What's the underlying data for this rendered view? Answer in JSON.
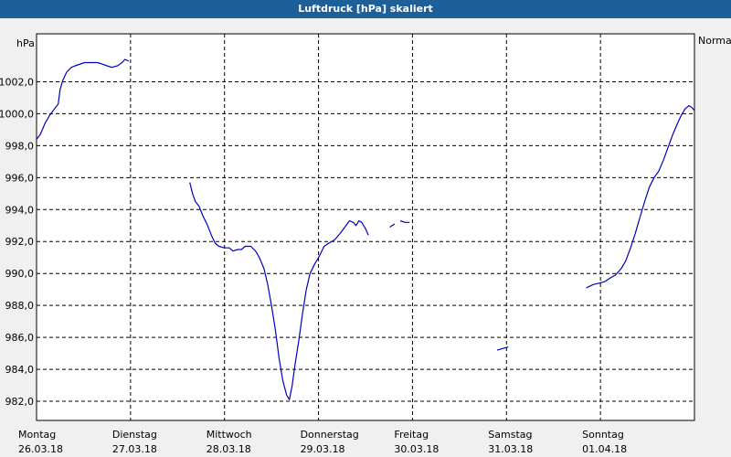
{
  "window": {
    "title": "Luftdruck [hPa] skaliert"
  },
  "chart_data": {
    "type": "line",
    "title": "Luftdruck [hPa] skaliert",
    "yunit": "hPa",
    "legend": "Normal",
    "ylim": [
      980.8,
      1005.0
    ],
    "yticks": [
      "982,0",
      "984,0",
      "986,0",
      "988,0",
      "990,0",
      "992,0",
      "994,0",
      "996,0",
      "998,0",
      "1000,0",
      "1002,0"
    ],
    "ytick_values": [
      982,
      984,
      986,
      988,
      990,
      992,
      994,
      996,
      998,
      1000,
      1002
    ],
    "xlim": [
      0,
      7
    ],
    "xtick_labels": [
      {
        "day": "Montag",
        "date": "26.03.18"
      },
      {
        "day": "Dienstag",
        "date": "27.03.18"
      },
      {
        "day": "Mittwoch",
        "date": "28.03.18"
      },
      {
        "day": "Donnerstag",
        "date": "29.03.18"
      },
      {
        "day": "Freitag",
        "date": "30.03.18"
      },
      {
        "day": "Samstag",
        "date": "31.03.18"
      },
      {
        "day": "Sonntag",
        "date": "01.04.18"
      }
    ],
    "grid": true,
    "line_color": "#0000c0",
    "series": [
      {
        "segments": [
          [
            [
              0.0,
              998.4
            ],
            [
              0.04,
              998.7
            ],
            [
              0.09,
              999.4
            ],
            [
              0.14,
              999.9
            ],
            [
              0.19,
              1000.3
            ],
            [
              0.23,
              1000.6
            ],
            [
              0.25,
              1001.5
            ],
            [
              0.28,
              1002.1
            ],
            [
              0.32,
              1002.6
            ],
            [
              0.37,
              1002.9
            ],
            [
              0.41,
              1003.0
            ],
            [
              0.51,
              1003.2
            ],
            [
              0.59,
              1003.2
            ],
            [
              0.65,
              1003.2
            ],
            [
              0.7,
              1003.1
            ],
            [
              0.75,
              1003.0
            ],
            [
              0.8,
              1002.9
            ],
            [
              0.86,
              1003.0
            ],
            [
              0.91,
              1003.2
            ],
            [
              0.94,
              1003.4
            ],
            [
              0.98,
              1003.3
            ]
          ],
          [
            [
              1.63,
              995.7
            ],
            [
              1.66,
              995.0
            ],
            [
              1.69,
              994.5
            ],
            [
              1.73,
              994.2
            ],
            [
              1.77,
              993.6
            ],
            [
              1.82,
              993.0
            ],
            [
              1.86,
              992.4
            ],
            [
              1.9,
              991.9
            ],
            [
              1.94,
              991.7
            ],
            [
              2.0,
              991.6
            ],
            [
              2.05,
              991.6
            ],
            [
              2.09,
              991.4
            ],
            [
              2.14,
              991.5
            ],
            [
              2.18,
              991.5
            ],
            [
              2.22,
              991.7
            ],
            [
              2.28,
              991.7
            ],
            [
              2.33,
              991.4
            ],
            [
              2.37,
              991.0
            ],
            [
              2.42,
              990.3
            ],
            [
              2.46,
              989.3
            ],
            [
              2.5,
              988.0
            ],
            [
              2.54,
              986.5
            ],
            [
              2.58,
              984.7
            ],
            [
              2.62,
              983.3
            ],
            [
              2.66,
              982.4
            ],
            [
              2.69,
              982.1
            ],
            [
              2.72,
              983.0
            ],
            [
              2.75,
              984.3
            ],
            [
              2.79,
              985.8
            ],
            [
              2.83,
              987.5
            ],
            [
              2.87,
              989.0
            ],
            [
              2.91,
              990.0
            ],
            [
              2.96,
              990.6
            ],
            [
              3.01,
              991.1
            ],
            [
              3.06,
              991.7
            ],
            [
              3.11,
              991.9
            ],
            [
              3.17,
              992.1
            ],
            [
              3.23,
              992.5
            ],
            [
              3.28,
              992.9
            ],
            [
              3.33,
              993.3
            ],
            [
              3.37,
              993.2
            ],
            [
              3.4,
              993.0
            ],
            [
              3.43,
              993.3
            ],
            [
              3.46,
              993.2
            ],
            [
              3.5,
              992.8
            ],
            [
              3.53,
              992.4
            ]
          ],
          [
            [
              3.76,
              992.9
            ],
            [
              3.81,
              993.1
            ]
          ],
          [
            [
              3.87,
              993.3
            ],
            [
              3.92,
              993.2
            ],
            [
              3.97,
              993.2
            ]
          ],
          [
            [
              4.9,
              985.2
            ],
            [
              4.96,
              985.3
            ],
            [
              5.02,
              985.4
            ]
          ],
          [
            [
              5.85,
              989.1
            ],
            [
              5.92,
              989.3
            ],
            [
              5.99,
              989.4
            ],
            [
              6.05,
              989.5
            ],
            [
              6.1,
              989.7
            ],
            [
              6.16,
              989.9
            ],
            [
              6.22,
              990.3
            ],
            [
              6.27,
              990.8
            ],
            [
              6.32,
              991.6
            ],
            [
              6.37,
              992.5
            ],
            [
              6.42,
              993.5
            ],
            [
              6.47,
              994.5
            ],
            [
              6.52,
              995.4
            ],
            [
              6.57,
              996.0
            ],
            [
              6.62,
              996.4
            ],
            [
              6.67,
              997.1
            ],
            [
              6.72,
              997.9
            ],
            [
              6.77,
              998.7
            ],
            [
              6.82,
              999.4
            ],
            [
              6.86,
              999.9
            ],
            [
              6.9,
              1000.3
            ],
            [
              6.94,
              1000.5
            ],
            [
              6.97,
              1000.4
            ],
            [
              7.0,
              1000.2
            ]
          ]
        ]
      }
    ]
  }
}
